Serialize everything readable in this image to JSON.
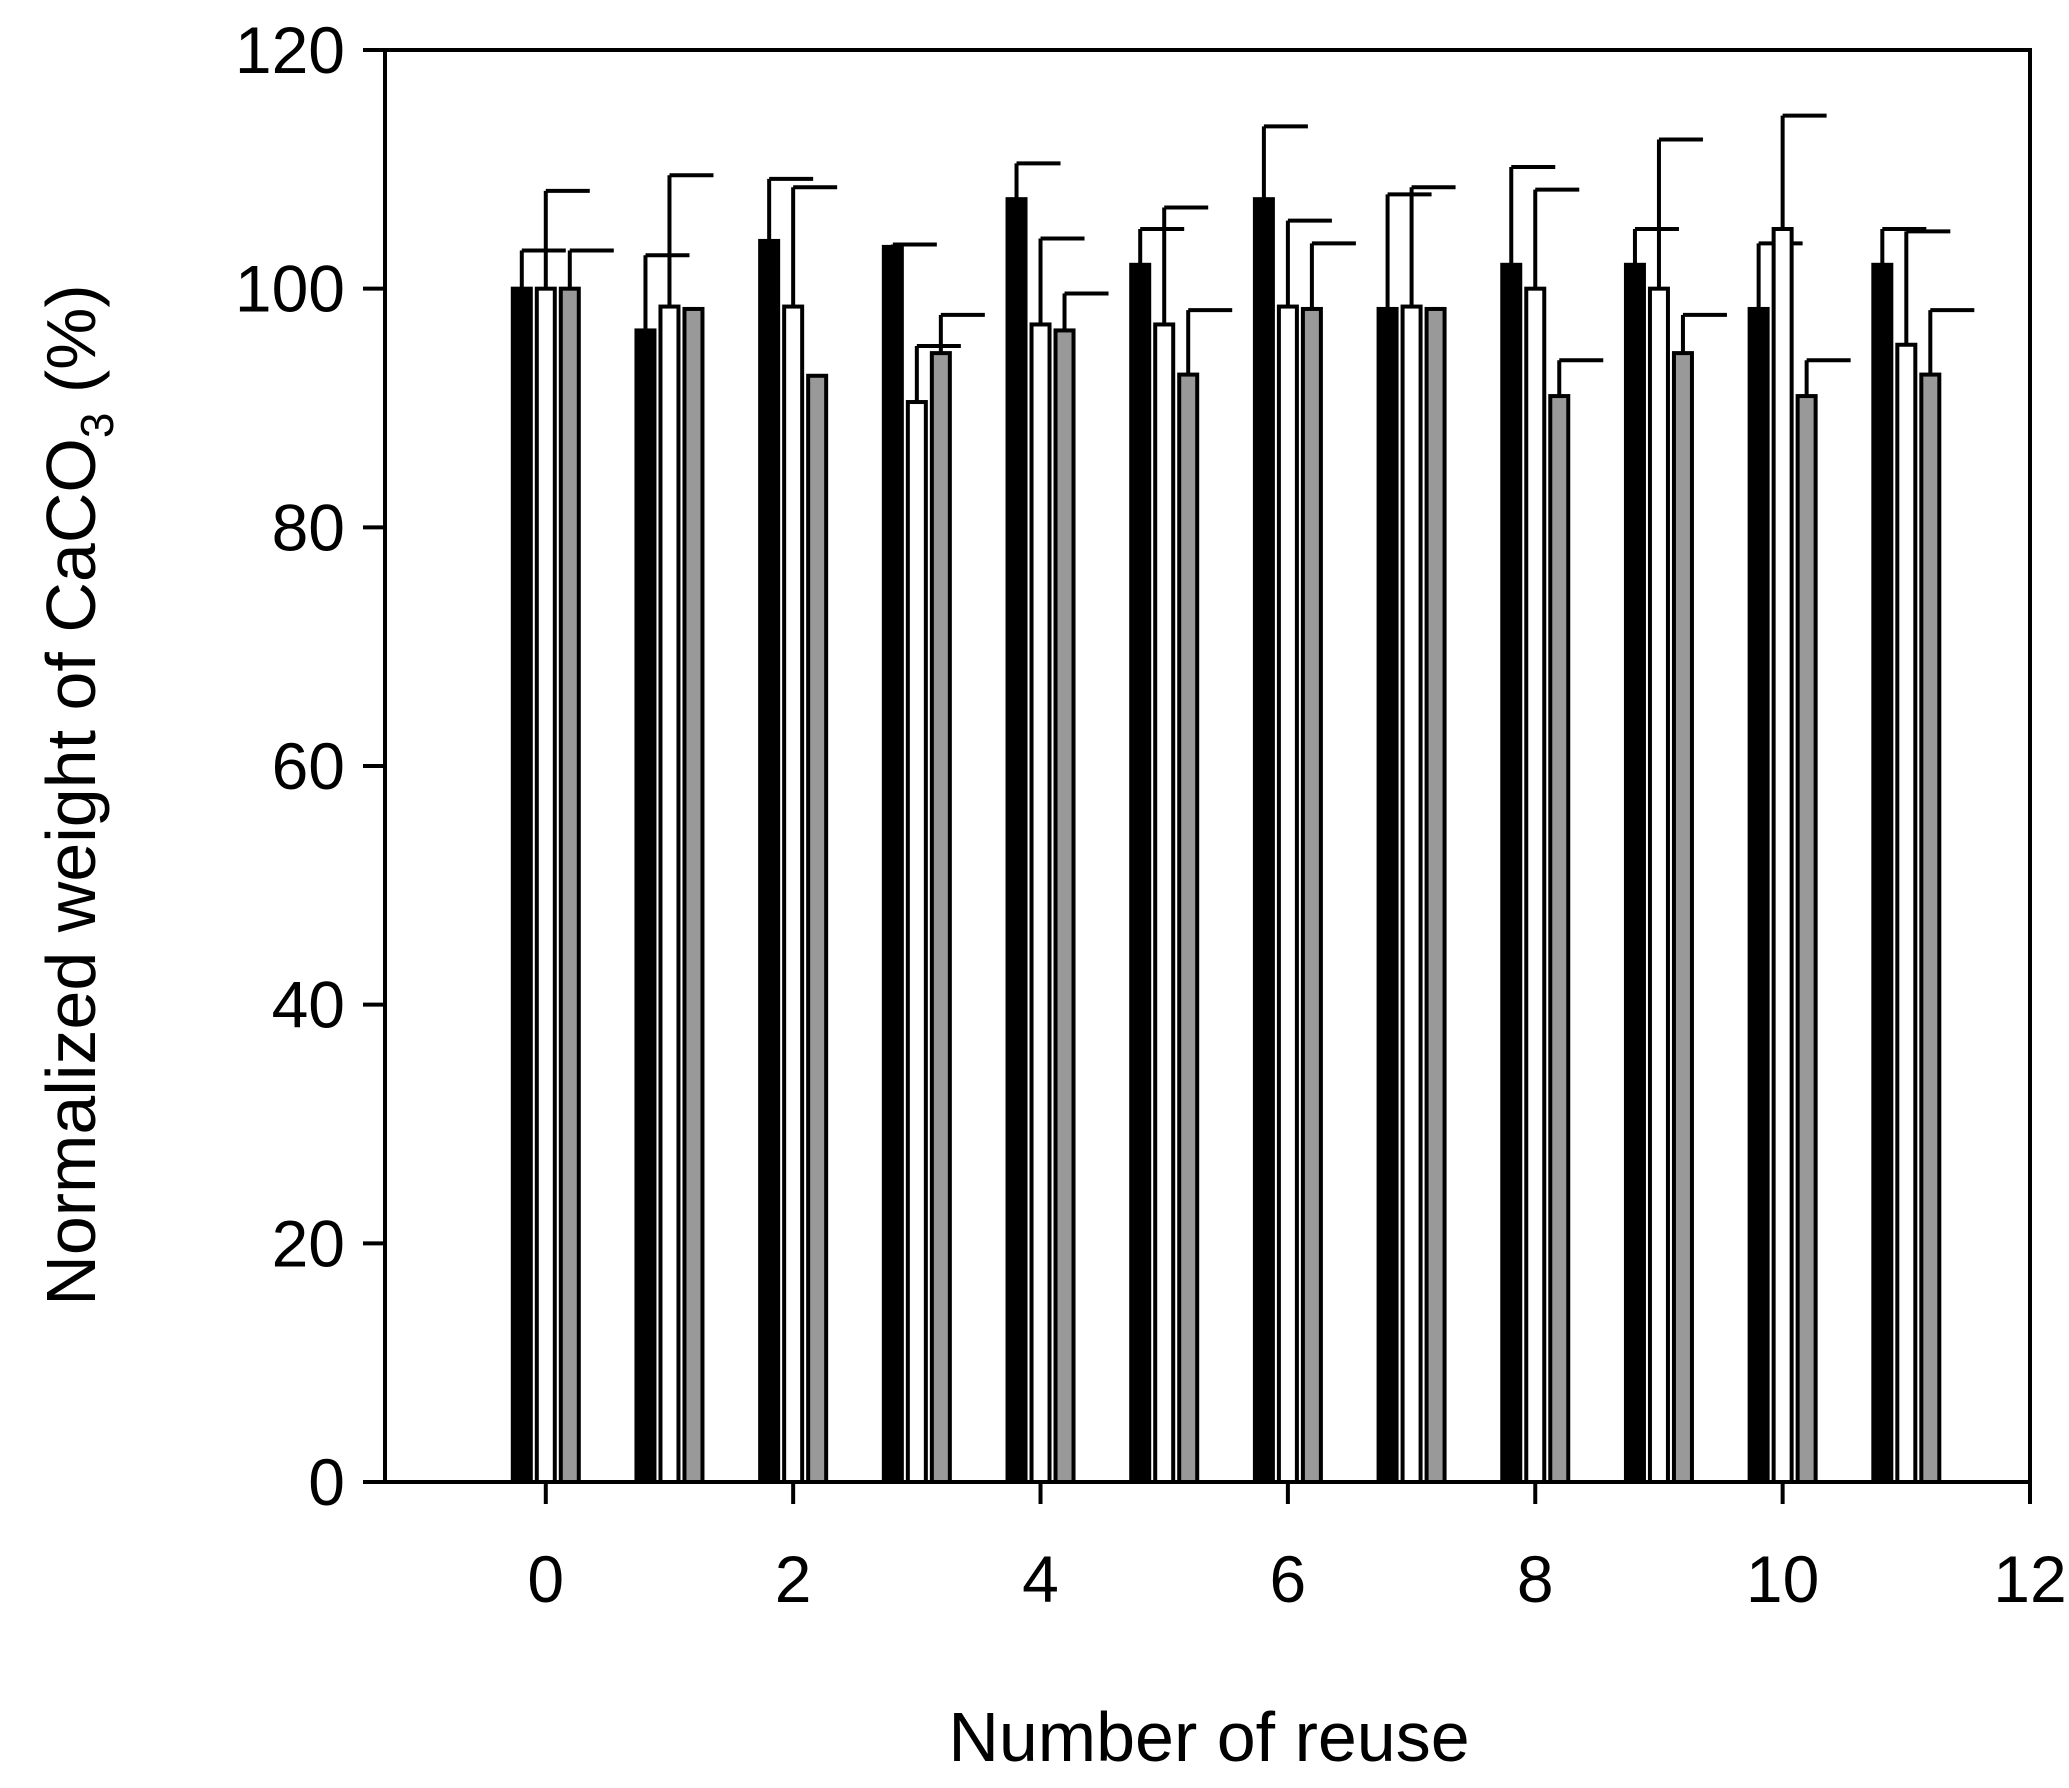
{
  "chart_data": {
    "type": "bar",
    "xlabel": "Number of reuse",
    "ylabel": {
      "prefix": "Normalized weight of CaCO",
      "subscript": "3",
      "suffix": " (%)"
    },
    "xlim": [
      -1.3,
      12
    ],
    "ylim": [
      0,
      120
    ],
    "xticks": [
      0,
      2,
      4,
      6,
      8,
      10,
      12
    ],
    "yticks": [
      0,
      20,
      40,
      60,
      80,
      100,
      120
    ],
    "grid": false,
    "legend": "none",
    "categories": [
      0,
      1,
      2,
      3,
      4,
      5,
      6,
      7,
      8,
      9,
      10,
      11
    ],
    "series": [
      {
        "fill": "#000000",
        "values": [
          100,
          96.5,
          104,
          103.5,
          107.5,
          102,
          107.5,
          98.3,
          102,
          102,
          98.3,
          102
        ],
        "errors": [
          3.2,
          6.3,
          5.2,
          0.2,
          3,
          3,
          6.1,
          9.6,
          8.2,
          3,
          5.5,
          3
        ]
      },
      {
        "fill": "#ffffff",
        "values": [
          100,
          98.5,
          98.5,
          90.5,
          97,
          97,
          98.5,
          98.5,
          100,
          100,
          105,
          95.3
        ],
        "errors": [
          8.2,
          11,
          10,
          4.7,
          7.2,
          9.8,
          7.2,
          10,
          8.3,
          12.5,
          9.5,
          9.5
        ]
      },
      {
        "fill": "#999999",
        "values": [
          100,
          98.3,
          92.7,
          94.6,
          96.5,
          92.8,
          98.3,
          98.3,
          91,
          94.6,
          91,
          92.8
        ],
        "errors": [
          3.2,
          0,
          0,
          3.2,
          3.1,
          5.4,
          5.5,
          0,
          3,
          3.2,
          3,
          5.4
        ]
      }
    ]
  }
}
